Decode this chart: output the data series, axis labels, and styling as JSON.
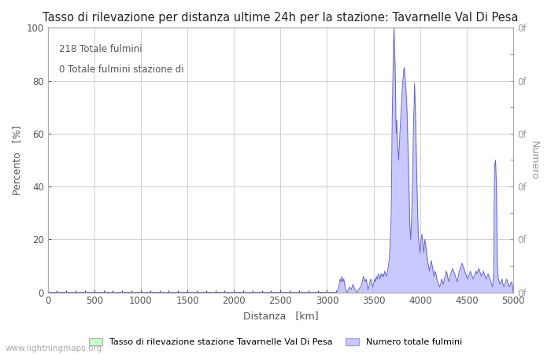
{
  "title": "Tasso di rilevazione per distanza ultime 24h per la stazione: Tavarnelle Val Di Pesa",
  "xlabel": "Distanza   [km]",
  "ylabel_left": "Percento   [%]",
  "ylabel_right": "Numero",
  "annotation1": "218 Totale fulmini",
  "annotation2": "0 Totale fulmini stazione di",
  "legend1": "Tasso di rilevazione stazione Tavarnelle Val Di Pesa",
  "legend2": "Numero totale fulmini",
  "watermark": "www.lightningmaps.org",
  "xlim": [
    0,
    5000
  ],
  "ylim_left": [
    0,
    100
  ],
  "ylim_right": [
    0,
    100
  ],
  "xticks": [
    0,
    500,
    1000,
    1500,
    2000,
    2500,
    3000,
    3500,
    4000,
    4500,
    5000
  ],
  "yticks_left": [
    0,
    20,
    40,
    60,
    80,
    100
  ],
  "fill_color": "#c8c8ff",
  "line_color": "#6666bb",
  "background_color": "#ffffff",
  "grid_color": "#d0d0d0",
  "title_fontsize": 10.5,
  "axis_label_fontsize": 9,
  "tick_fontsize": 8.5,
  "legend_color_green": "#c8ffc8",
  "legend_color_blue": "#c8c8ff",
  "text_color": "#555555",
  "right_axis_color": "#999999"
}
